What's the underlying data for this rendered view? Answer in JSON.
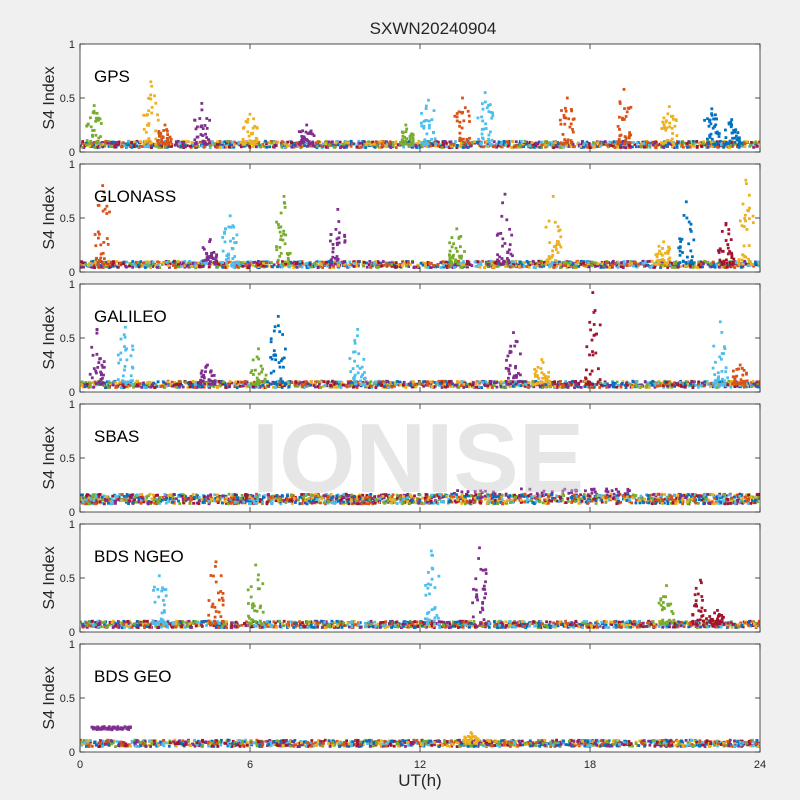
{
  "chart_data": {
    "type": "scatter",
    "title": "SXWN20240904",
    "xlabel": "UT(h)",
    "ylabel": "S4 Index",
    "xlim": [
      0,
      24
    ],
    "ylim": [
      0,
      1
    ],
    "xticks": [
      "0",
      "6",
      "12",
      "18",
      "24"
    ],
    "yticks": [
      "0",
      "0.5",
      "1"
    ],
    "watermark": "IONISE",
    "colors": [
      "#0072BD",
      "#D95319",
      "#EDB120",
      "#7E2F8E",
      "#77AC30",
      "#4DBEEE",
      "#A2142F"
    ],
    "panels": [
      {
        "name": "GPS",
        "baseline": 0.07,
        "spikes": [
          {
            "x": 0.5,
            "peak": 0.43,
            "color": 4
          },
          {
            "x": 2.5,
            "peak": 0.65,
            "color": 2
          },
          {
            "x": 3.0,
            "peak": 0.25,
            "color": 1
          },
          {
            "x": 4.3,
            "peak": 0.45,
            "color": 3
          },
          {
            "x": 6.0,
            "peak": 0.35,
            "color": 2
          },
          {
            "x": 8.0,
            "peak": 0.25,
            "color": 3
          },
          {
            "x": 11.5,
            "peak": 0.25,
            "color": 4
          },
          {
            "x": 12.3,
            "peak": 0.48,
            "color": 5
          },
          {
            "x": 13.5,
            "peak": 0.5,
            "color": 1
          },
          {
            "x": 14.3,
            "peak": 0.55,
            "color": 5
          },
          {
            "x": 17.2,
            "peak": 0.5,
            "color": 1
          },
          {
            "x": 19.2,
            "peak": 0.58,
            "color": 1
          },
          {
            "x": 20.8,
            "peak": 0.42,
            "color": 2
          },
          {
            "x": 22.3,
            "peak": 0.4,
            "color": 0
          },
          {
            "x": 23.0,
            "peak": 0.3,
            "color": 0
          }
        ]
      },
      {
        "name": "GLONASS",
        "baseline": 0.07,
        "spikes": [
          {
            "x": 0.8,
            "peak": 0.8,
            "color": 1
          },
          {
            "x": 4.6,
            "peak": 0.3,
            "color": 3
          },
          {
            "x": 5.3,
            "peak": 0.52,
            "color": 5
          },
          {
            "x": 7.2,
            "peak": 0.7,
            "color": 4
          },
          {
            "x": 9.1,
            "peak": 0.58,
            "color": 3
          },
          {
            "x": 13.3,
            "peak": 0.4,
            "color": 4
          },
          {
            "x": 15.0,
            "peak": 0.72,
            "color": 3
          },
          {
            "x": 16.7,
            "peak": 0.7,
            "color": 2
          },
          {
            "x": 20.6,
            "peak": 0.28,
            "color": 2
          },
          {
            "x": 21.4,
            "peak": 0.65,
            "color": 0
          },
          {
            "x": 22.8,
            "peak": 0.45,
            "color": 6
          },
          {
            "x": 23.5,
            "peak": 0.85,
            "color": 2
          }
        ]
      },
      {
        "name": "GALILEO",
        "baseline": 0.07,
        "spikes": [
          {
            "x": 0.6,
            "peak": 0.58,
            "color": 3
          },
          {
            "x": 1.6,
            "peak": 0.6,
            "color": 5
          },
          {
            "x": 4.5,
            "peak": 0.25,
            "color": 3
          },
          {
            "x": 6.3,
            "peak": 0.4,
            "color": 4
          },
          {
            "x": 7.0,
            "peak": 0.7,
            "color": 0
          },
          {
            "x": 9.8,
            "peak": 0.58,
            "color": 5
          },
          {
            "x": 15.3,
            "peak": 0.55,
            "color": 3
          },
          {
            "x": 16.3,
            "peak": 0.3,
            "color": 2
          },
          {
            "x": 18.1,
            "peak": 0.92,
            "color": 6
          },
          {
            "x": 22.6,
            "peak": 0.65,
            "color": 5
          },
          {
            "x": 23.3,
            "peak": 0.25,
            "color": 1
          }
        ]
      },
      {
        "name": "SBAS",
        "baseline": 0.12,
        "spikes": []
      },
      {
        "name": "BDS NGEO",
        "baseline": 0.07,
        "spikes": [
          {
            "x": 2.8,
            "peak": 0.52,
            "color": 5
          },
          {
            "x": 4.8,
            "peak": 0.65,
            "color": 1
          },
          {
            "x": 6.2,
            "peak": 0.62,
            "color": 4
          },
          {
            "x": 12.4,
            "peak": 0.75,
            "color": 5
          },
          {
            "x": 14.1,
            "peak": 0.78,
            "color": 3
          },
          {
            "x": 20.7,
            "peak": 0.43,
            "color": 4
          },
          {
            "x": 21.9,
            "peak": 0.48,
            "color": 6
          },
          {
            "x": 22.5,
            "peak": 0.2,
            "color": 6
          }
        ]
      },
      {
        "name": "BDS GEO",
        "baseline": 0.08,
        "spikes": [
          {
            "x": 13.8,
            "peak": 0.18,
            "color": 2
          }
        ],
        "plateau": {
          "x0": 0.4,
          "x1": 1.8,
          "y": 0.22,
          "color": 3
        }
      }
    ]
  }
}
